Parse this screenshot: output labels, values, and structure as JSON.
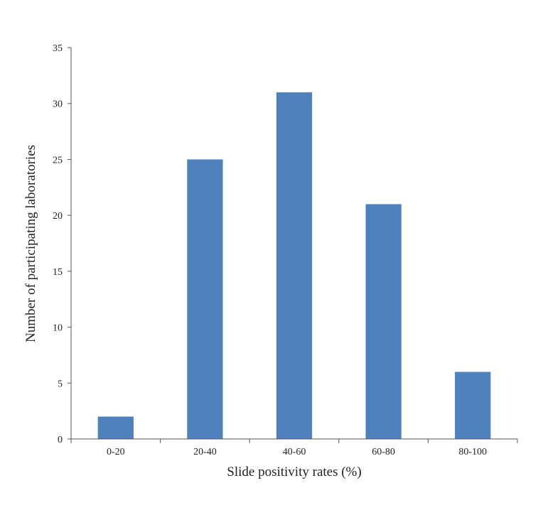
{
  "chart_data": {
    "type": "bar",
    "title": "",
    "xlabel": "Slide positivity rates (%)",
    "ylabel": "Number of participating laboratories",
    "categories": [
      "0-20",
      "20-40",
      "40-60",
      "60-80",
      "80-100"
    ],
    "values": [
      2,
      25,
      31,
      21,
      6
    ],
    "ylim": [
      0,
      35
    ],
    "yticks": [
      0,
      5,
      10,
      15,
      20,
      25,
      30,
      35
    ],
    "grid": false,
    "bar_color": "#4f81bd"
  }
}
